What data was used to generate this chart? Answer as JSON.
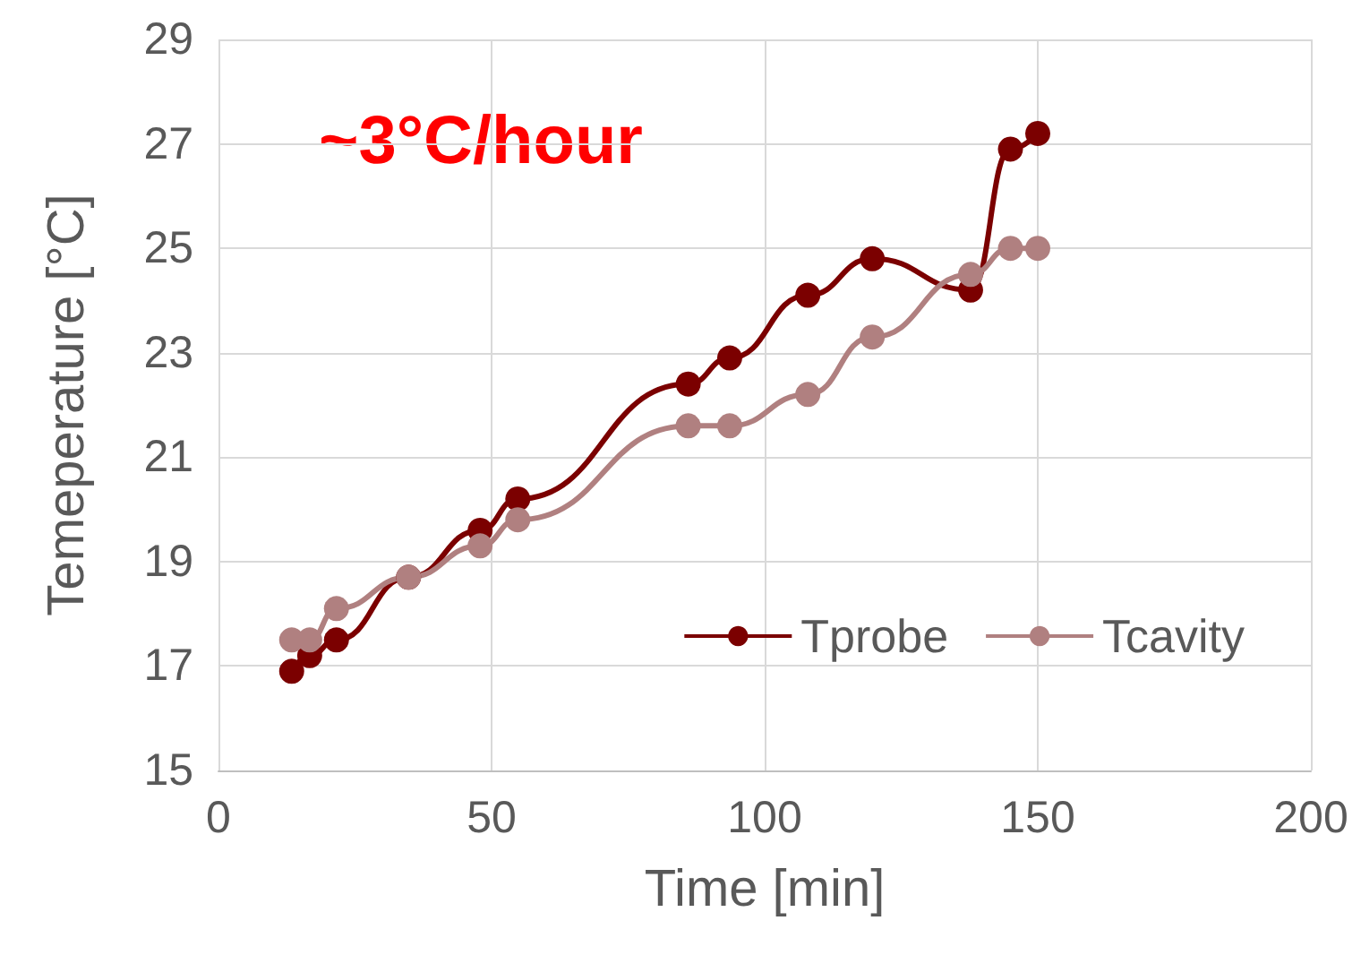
{
  "chart_data": {
    "type": "line",
    "xlabel": "Time [min]",
    "ylabel": "Temeperature [°C]",
    "annotations": [
      "~3°C/hour"
    ],
    "xlim": [
      0,
      200
    ],
    "xticks": [
      0,
      50,
      100,
      150,
      200
    ],
    "ylim": [
      15,
      29
    ],
    "yticks": [
      15,
      17,
      19,
      21,
      23,
      25,
      27,
      29
    ],
    "grid": true,
    "legend": "bottom right",
    "marker": "circle",
    "line_style": "solid",
    "series": [
      {
        "name": "Tprobe",
        "color": "#7b0000",
        "x": [
          13.4,
          16.7,
          21.6,
          34.8,
          47.9,
          54.8,
          86,
          93.6,
          107.9,
          119.7,
          137.7,
          145,
          150
        ],
        "values": [
          16.9,
          17.2,
          17.5,
          18.7,
          19.6,
          20.2,
          22.4,
          22.9,
          24.1,
          24.8,
          24.2,
          26.9,
          27.2
        ]
      },
      {
        "name": "Tcavity",
        "color": "#b08080",
        "x": [
          13.4,
          16.7,
          21.6,
          34.8,
          47.9,
          54.8,
          86,
          93.6,
          107.9,
          119.7,
          137.7,
          145,
          150
        ],
        "values": [
          17.5,
          17.5,
          18.1,
          18.7,
          19.3,
          19.8,
          21.6,
          21.6,
          22.2,
          23.3,
          24.5,
          25,
          25
        ]
      }
    ]
  }
}
